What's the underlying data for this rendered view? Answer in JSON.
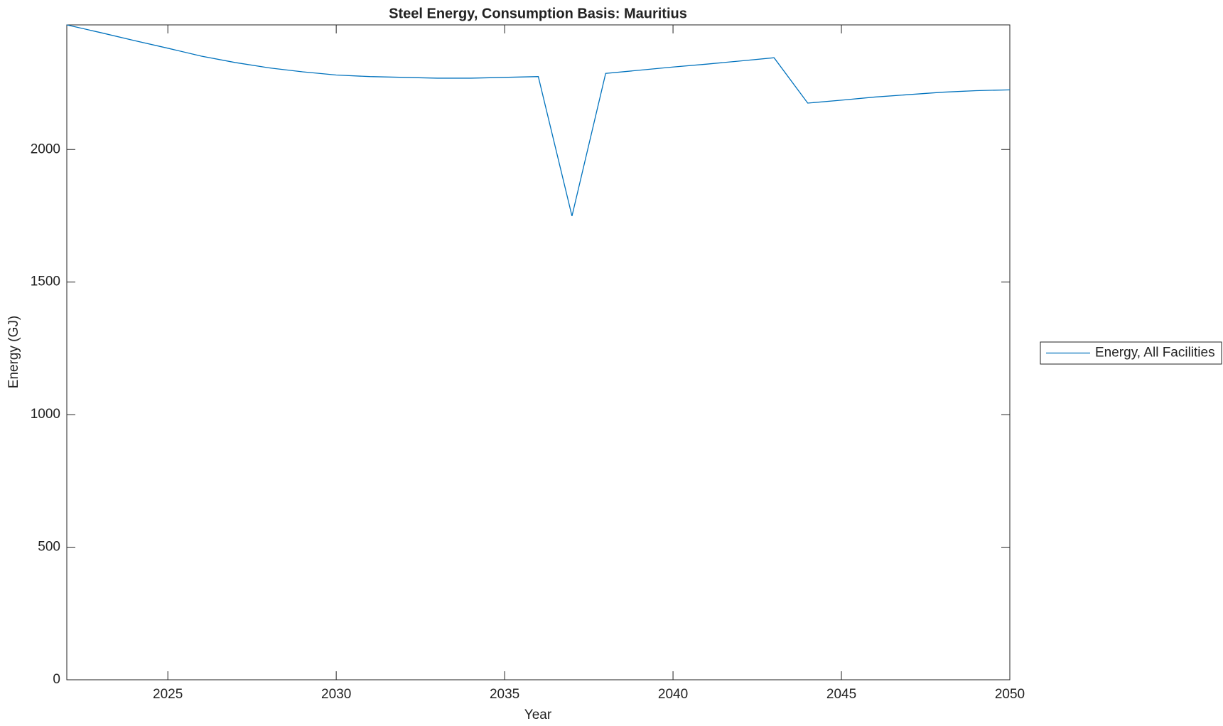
{
  "chart_data": {
    "type": "line",
    "title": "Steel Energy, Consumption Basis: Mauritius",
    "x_label": "Year",
    "y_label": "Energy (GJ)",
    "x": [
      2022,
      2023,
      2024,
      2025,
      2026,
      2027,
      2028,
      2029,
      2030,
      2031,
      2032,
      2033,
      2034,
      2035,
      2036,
      2037,
      2038,
      2039,
      2040,
      2041,
      2042,
      2043,
      2044,
      2045,
      2046,
      2047,
      2048,
      2049,
      2050
    ],
    "series": [
      {
        "name": "Energy, All Facilities",
        "color": "#0072bd",
        "values": [
          2470,
          2441,
          2411,
          2382,
          2352,
          2328,
          2308,
          2293,
          2281,
          2275,
          2272,
          2269,
          2269,
          2272,
          2275,
          1749,
          2287,
          2299,
          2311,
          2322,
          2334,
          2346,
          2175,
          2186,
          2198,
          2207,
          2216,
          2222,
          2225
        ]
      }
    ],
    "xlim": [
      2022,
      2050
    ],
    "xticks": [
      2025,
      2030,
      2035,
      2040,
      2045,
      2050
    ],
    "ylim": [
      0,
      2470
    ],
    "yticks": [
      0,
      500,
      1000,
      1500,
      2000
    ],
    "legend": "eastoutside",
    "grid": false
  }
}
